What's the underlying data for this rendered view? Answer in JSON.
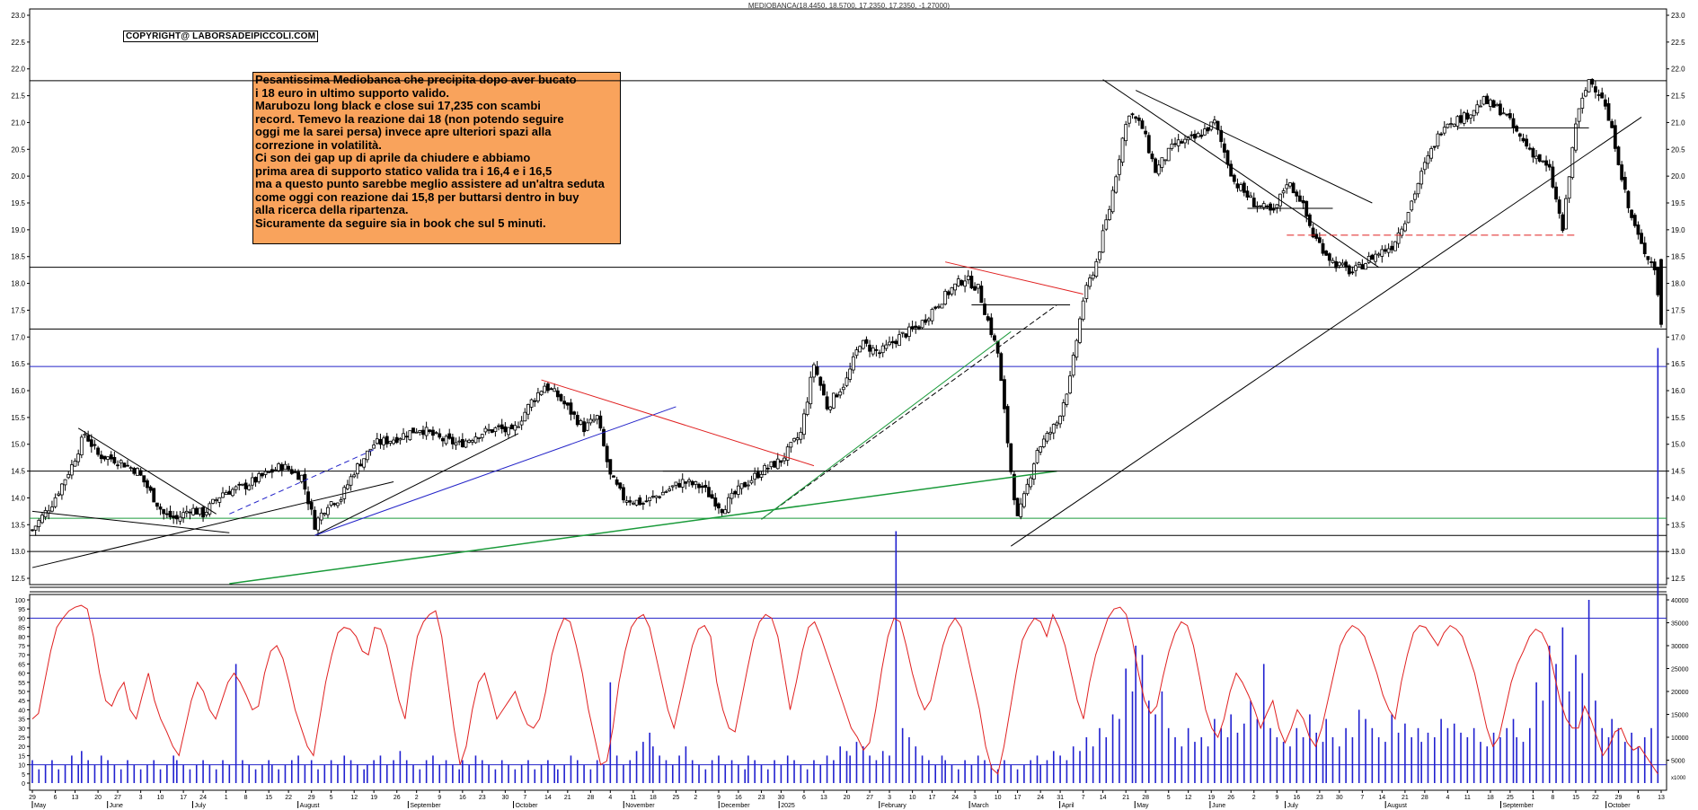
{
  "header": {
    "title": "MEDIOBANCA(18.4450, 18.5700, 17.2350, 17.2350, -1.27000)"
  },
  "copyright": "COPYRIGHT@ LABORSADEIPICCOLI.COM",
  "annotation": {
    "lines": [
      "Pesantissima Mediobanca che precipita dopo aver bucato",
      "i 18 euro in ultimo supporto valido.",
      "Marubozu long black e close sui 17,235 con scambi",
      "record. Temevo la reazione dai 18 (non potendo seguire",
      "oggi me la sarei persa) invece  apre ulteriori spazi alla",
      "correzione in volatilità.",
      "Ci son  dei gap up di aprile da chiudere e abbiamo",
      "prima area di supporto statico valida tra i 16,4 e i 16,5",
      "ma a questo punto sarebbe meglio assistere ad un'altra seduta",
      "come oggi con reazione dai 15,8 per buttarsi dentro in buy",
      "alla ricerca della ripartenza.",
      "Sicuramente da seguire sia in book che sul 5 minuti."
    ]
  },
  "colors": {
    "price": "#000000",
    "oscillator": "#e02020",
    "volume": "#2020d0",
    "blue_line": "#2323c8",
    "green_line": "#1a9a3a",
    "red_line": "#e02020"
  },
  "chart_data": [
    {
      "type": "candlestick",
      "title": "MEDIOBANCA(18.4450, 18.5700, 17.2350, 17.2350, -1.27000)",
      "ylim": [
        12.5,
        23.0
      ],
      "y_ticks": [
        "12.5",
        "13.0",
        "13.5",
        "14.0",
        "14.5",
        "15.0",
        "15.5",
        "16.0",
        "16.5",
        "17.0",
        "17.5",
        "18.0",
        "18.5",
        "19.0",
        "19.5",
        "20.0",
        "20.5",
        "21.0",
        "21.5",
        "22.0",
        "22.5",
        "23.0"
      ],
      "last": {
        "open": 18.445,
        "high": 18.57,
        "low": 17.235,
        "close": 17.235,
        "change": -1.27
      },
      "horizontal_levels": [
        {
          "y": 21.78,
          "color": "black"
        },
        {
          "y": 18.3,
          "color": "black"
        },
        {
          "y": 17.15,
          "color": "black"
        },
        {
          "y": 16.45,
          "color": "blue"
        },
        {
          "y": 14.5,
          "color": "black"
        },
        {
          "y": 13.62,
          "color": "green"
        },
        {
          "y": 13.3,
          "color": "black"
        },
        {
          "y": 13.0,
          "color": "black"
        }
      ],
      "close_path": [
        [
          0,
          13.4
        ],
        [
          6,
          13.9
        ],
        [
          12,
          14.6
        ],
        [
          16,
          15.2
        ],
        [
          20,
          14.8
        ],
        [
          26,
          14.7
        ],
        [
          32,
          14.5
        ],
        [
          36,
          14.1
        ],
        [
          40,
          13.7
        ],
        [
          44,
          13.6
        ],
        [
          48,
          13.8
        ],
        [
          52,
          13.7
        ],
        [
          58,
          14.1
        ],
        [
          64,
          14.2
        ],
        [
          70,
          14.4
        ],
        [
          76,
          14.6
        ],
        [
          82,
          14.4
        ],
        [
          86,
          13.5
        ],
        [
          90,
          13.9
        ],
        [
          94,
          14.0
        ],
        [
          98,
          14.5
        ],
        [
          104,
          15.0
        ],
        [
          110,
          15.1
        ],
        [
          118,
          15.3
        ],
        [
          124,
          15.1
        ],
        [
          130,
          15.0
        ],
        [
          136,
          15.2
        ],
        [
          142,
          15.3
        ],
        [
          146,
          15.2
        ],
        [
          152,
          15.8
        ],
        [
          156,
          16.1
        ],
        [
          160,
          15.9
        ],
        [
          164,
          15.6
        ],
        [
          168,
          15.3
        ],
        [
          172,
          15.5
        ],
        [
          176,
          14.4
        ],
        [
          180,
          14.0
        ],
        [
          186,
          13.9
        ],
        [
          192,
          14.1
        ],
        [
          198,
          14.3
        ],
        [
          204,
          14.2
        ],
        [
          210,
          13.8
        ],
        [
          216,
          14.2
        ],
        [
          222,
          14.5
        ],
        [
          228,
          14.7
        ],
        [
          234,
          15.2
        ],
        [
          238,
          16.5
        ],
        [
          242,
          15.7
        ],
        [
          248,
          16.2
        ],
        [
          252,
          16.9
        ],
        [
          258,
          16.7
        ],
        [
          264,
          17.0
        ],
        [
          270,
          17.2
        ],
        [
          274,
          17.5
        ],
        [
          280,
          17.9
        ],
        [
          284,
          18.1
        ],
        [
          288,
          17.9
        ],
        [
          290,
          17.5
        ],
        [
          294,
          16.7
        ],
        [
          298,
          14.5
        ],
        [
          300,
          13.6
        ],
        [
          302,
          14.0
        ],
        [
          306,
          14.9
        ],
        [
          312,
          15.4
        ],
        [
          316,
          16.2
        ],
        [
          320,
          17.7
        ],
        [
          324,
          18.4
        ],
        [
          328,
          19.4
        ],
        [
          332,
          20.7
        ],
        [
          334,
          21.2
        ],
        [
          338,
          20.9
        ],
        [
          342,
          20.1
        ],
        [
          348,
          20.6
        ],
        [
          354,
          20.7
        ],
        [
          360,
          21.0
        ],
        [
          366,
          19.9
        ],
        [
          372,
          19.5
        ],
        [
          378,
          19.3
        ],
        [
          382,
          19.9
        ],
        [
          386,
          19.6
        ],
        [
          390,
          18.9
        ],
        [
          396,
          18.4
        ],
        [
          402,
          18.2
        ],
        [
          408,
          18.5
        ],
        [
          414,
          18.7
        ],
        [
          418,
          19.2
        ],
        [
          424,
          20.2
        ],
        [
          430,
          21.0
        ],
        [
          436,
          21.1
        ],
        [
          442,
          21.4
        ],
        [
          448,
          21.2
        ],
        [
          452,
          20.8
        ],
        [
          456,
          20.5
        ],
        [
          462,
          20.1
        ],
        [
          466,
          19.0
        ],
        [
          470,
          21.0
        ],
        [
          474,
          21.8
        ],
        [
          478,
          21.5
        ],
        [
          482,
          20.6
        ],
        [
          486,
          19.4
        ],
        [
          490,
          18.7
        ],
        [
          494,
          18.3
        ],
        [
          496,
          17.235
        ]
      ],
      "x_month_labels": [
        "May",
        "June",
        "July",
        "August",
        "September",
        "October",
        "November",
        "December",
        "2025",
        "February",
        "March",
        "April",
        "May",
        "June",
        "July",
        "August",
        "September",
        "October"
      ],
      "x_day_labels": [
        "29",
        "6",
        "13",
        "20",
        "27",
        "3",
        "10",
        "17",
        "24",
        "1",
        "8",
        "15",
        "22",
        "29",
        "5",
        "12",
        "19",
        "26",
        "2",
        "9",
        "16",
        "23",
        "30",
        "7",
        "14",
        "21",
        "28",
        "4",
        "11",
        "18",
        "25",
        "2",
        "9",
        "16",
        "23",
        "30",
        "6",
        "13",
        "20",
        "27",
        "3",
        "10",
        "17",
        "24",
        "3",
        "10",
        "17",
        "24",
        "31",
        "7",
        "14",
        "21",
        "28",
        "5",
        "12",
        "19",
        "26",
        "2",
        "9",
        "16",
        "23",
        "30",
        "7",
        "14",
        "21",
        "28",
        "4",
        "11",
        "18",
        "25",
        "1",
        "8",
        "15",
        "22",
        "29",
        "6",
        "13"
      ]
    },
    {
      "type": "line",
      "series": [
        {
          "values": [
            35,
            38,
            55,
            72,
            85,
            90,
            94,
            96,
            97,
            95,
            80,
            60,
            45,
            42,
            50,
            55,
            40,
            35,
            48,
            60,
            45,
            35,
            28,
            20,
            15,
            30,
            45,
            55,
            50,
            40,
            35,
            45,
            55,
            60,
            55,
            48,
            40,
            42,
            60,
            72,
            75,
            68,
            55,
            40,
            30,
            20,
            15,
            35,
            55,
            70,
            82,
            85,
            84,
            80,
            72,
            70,
            85,
            84,
            75,
            60,
            45,
            35,
            60,
            80,
            88,
            92,
            94,
            80,
            55,
            30,
            10,
            20,
            40,
            55,
            60,
            48,
            35,
            40,
            45,
            50,
            40,
            32,
            30,
            35,
            50,
            70,
            82,
            90,
            88,
            75,
            60,
            40,
            25,
            10,
            12,
            30,
            55,
            72,
            85,
            90,
            92,
            85,
            70,
            55,
            40,
            30,
            45,
            60,
            75,
            84,
            86,
            80,
            55,
            40,
            30,
            28,
            45,
            62,
            78,
            88,
            92,
            90,
            80,
            60,
            40,
            55,
            72,
            85,
            88,
            80,
            70,
            60,
            50,
            40,
            30,
            25,
            18,
            22,
            40,
            62,
            80,
            90,
            88,
            75,
            60,
            48,
            40,
            45,
            60,
            75,
            85,
            90,
            85,
            70,
            55,
            40,
            20,
            8,
            5,
            20,
            40,
            60,
            78,
            85,
            90,
            88,
            80,
            92,
            85,
            75,
            60,
            45,
            35,
            55,
            70,
            80,
            90,
            95,
            96,
            92,
            78,
            60,
            45,
            38,
            42,
            58,
            72,
            82,
            88,
            86,
            75,
            58,
            40,
            30,
            25,
            35,
            50,
            60,
            55,
            48,
            40,
            30,
            38,
            45,
            30,
            22,
            30,
            40,
            35,
            25,
            20,
            30,
            45,
            60,
            75,
            82,
            86,
            84,
            80,
            70,
            60,
            48,
            40,
            35,
            55,
            70,
            82,
            86,
            85,
            80,
            75,
            82,
            86,
            84,
            80,
            70,
            60,
            45,
            30,
            20,
            25,
            40,
            55,
            65,
            72,
            80,
            84,
            82,
            75,
            60,
            45,
            35,
            30,
            30,
            42,
            35,
            25,
            15,
            20,
            28,
            30,
            22,
            18,
            20,
            15,
            10,
            5
          ],
          "color": "red"
        },
        {
          "values": [
            5,
            3,
            4,
            5,
            3,
            4,
            6,
            4,
            7,
            5,
            4,
            6,
            5,
            4,
            3,
            5,
            4,
            3,
            4,
            5,
            3,
            4,
            6,
            5,
            4,
            3,
            4,
            5,
            4,
            3,
            5,
            4,
            26,
            5,
            4,
            3,
            4,
            5,
            4,
            3,
            4,
            5,
            6,
            4,
            5,
            3,
            4,
            5,
            4,
            6,
            5,
            4,
            3,
            4,
            5,
            6,
            4,
            5,
            7,
            5,
            4,
            3,
            5,
            6,
            4,
            5,
            4,
            3,
            5,
            4,
            6,
            5,
            4,
            3,
            5,
            4,
            3,
            4,
            5,
            3,
            4,
            5,
            4,
            3,
            4,
            6,
            5,
            4,
            3,
            5,
            4,
            22,
            6,
            4,
            5,
            7,
            9,
            11,
            8,
            6,
            5,
            4,
            6,
            8,
            5,
            4,
            3,
            5,
            6,
            4,
            5,
            4,
            3,
            6,
            5,
            4,
            3,
            5,
            4,
            6,
            5,
            4,
            3,
            5,
            4,
            6,
            5,
            8,
            7,
            6,
            9,
            8,
            6,
            5,
            7,
            6,
            55,
            12,
            10,
            8,
            6,
            5,
            4,
            6,
            5,
            4,
            3,
            5,
            4,
            6,
            5,
            4,
            3,
            5,
            4,
            3,
            4,
            5,
            6,
            4,
            5,
            7,
            6,
            5,
            8,
            7,
            10,
            8,
            12,
            10,
            15,
            14,
            25,
            20,
            30,
            28,
            18,
            15,
            20,
            12,
            10,
            8,
            12,
            9,
            10,
            8,
            14,
            12,
            10,
            15,
            11,
            13,
            18,
            14,
            26,
            12,
            10,
            9,
            8,
            12,
            10,
            15,
            11,
            9,
            14,
            10,
            8,
            12,
            10,
            16,
            14,
            12,
            10,
            9,
            15,
            11,
            13,
            10,
            12,
            9,
            11,
            10,
            14,
            12,
            13,
            11,
            10,
            12,
            9,
            8,
            11,
            10,
            12,
            14,
            10,
            9,
            12,
            22,
            18,
            30,
            26,
            34,
            20,
            28,
            24,
            40,
            18,
            12,
            10,
            14,
            12,
            9,
            11,
            8,
            10,
            12,
            95
          ],
          "color": "blue"
        }
      ],
      "left_ticks": [
        "0",
        "5",
        "10",
        "15",
        "20",
        "25",
        "30",
        "35",
        "40",
        "45",
        "50",
        "55",
        "60",
        "65",
        "70",
        "75",
        "80",
        "85",
        "90",
        "95",
        "100"
      ],
      "right_ticks": [
        "5000",
        "10000",
        "15000",
        "20000",
        "25000",
        "30000",
        "35000",
        "40000"
      ],
      "right_axis_label": "x1000",
      "reference_levels": [
        90,
        10
      ]
    }
  ]
}
